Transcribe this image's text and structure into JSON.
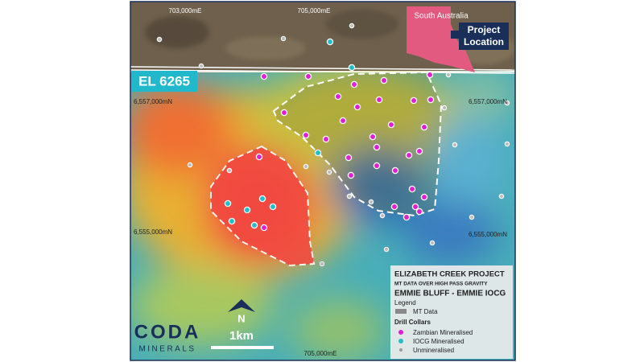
{
  "grid_labels": {
    "top": [
      "703,000mE",
      "705,000mE"
    ],
    "bottom": [
      "705,000mE"
    ],
    "left": [
      "6,557,000mN",
      "6,555,000mN"
    ],
    "right": [
      "6,557,000mN",
      "6,555,000mN"
    ]
  },
  "inset": {
    "region": "South Australia",
    "label": "Project Location"
  },
  "tenement": "EL 6265",
  "legend": {
    "project": "ELIZABETH CREEK PROJECT",
    "subtitle": "MT DATA OVER HIGH PASS GRAVITY",
    "heading": "EMMIE BLUFF - EMMIE IOCG",
    "legend_title": "Legend",
    "mt_data": "MT Data",
    "collars_title": "Drill Collars",
    "items": [
      "Zambian Mineralised",
      "IOCG Mineralised",
      "Unmineralised"
    ]
  },
  "scale": {
    "north": "N",
    "distance": "1km"
  },
  "logo": {
    "name": "CODA",
    "sub": "MINERALS"
  }
}
